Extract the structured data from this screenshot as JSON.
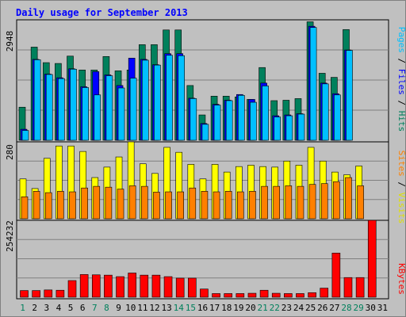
{
  "chart_data": [
    {
      "type": "bar",
      "title": "Daily usage for September 2013",
      "x": [
        1,
        2,
        3,
        4,
        5,
        6,
        7,
        8,
        9,
        10,
        11,
        12,
        13,
        14,
        15,
        16,
        17,
        18,
        19,
        20,
        21,
        22,
        23,
        24,
        25,
        26,
        27,
        28,
        29,
        30,
        31
      ],
      "x_labels": [
        "1",
        "2",
        "3",
        "4",
        "5",
        "6",
        "7",
        "8",
        "9",
        "10",
        "11",
        "12",
        "13",
        "14",
        "15",
        "16",
        "17",
        "18",
        "19",
        "20",
        "21",
        "22",
        "23",
        "24",
        "25",
        "26",
        "27",
        "28",
        "29",
        "30",
        "31"
      ],
      "ylim": [
        0,
        2948
      ],
      "ytick_label": "2948",
      "legend": [
        "Pages",
        "Files",
        "Hits"
      ],
      "legend_placement": "right",
      "grid": true,
      "series": [
        {
          "name": "Hits",
          "values": [
            810,
            2280,
            1900,
            1880,
            2060,
            1720,
            1720,
            2050,
            1700,
            1720,
            2340,
            2340,
            2700,
            2700,
            1340,
            620,
            1080,
            1080,
            1060,
            1000,
            1780,
            970,
            980,
            1020,
            2900,
            1640,
            1540,
            2710,
            0,
            0,
            0
          ]
        },
        {
          "name": "Files",
          "values": [
            270,
            1980,
            1620,
            1530,
            1750,
            1310,
            1680,
            1600,
            1340,
            2010,
            1980,
            1850,
            2120,
            2120,
            1030,
            410,
            880,
            980,
            1120,
            1000,
            1400,
            600,
            620,
            650,
            2790,
            1400,
            1140,
            2210,
            0,
            0,
            0
          ]
        },
        {
          "name": "Pages",
          "values": [
            240,
            1970,
            1610,
            1510,
            1740,
            1290,
            1110,
            1580,
            1280,
            1520,
            1960,
            1840,
            2080,
            2070,
            1020,
            390,
            860,
            970,
            1100,
            930,
            1330,
            570,
            600,
            640,
            2760,
            1380,
            1110,
            2200,
            0,
            0,
            0
          ]
        }
      ]
    },
    {
      "type": "bar",
      "x": [
        1,
        2,
        3,
        4,
        5,
        6,
        7,
        8,
        9,
        10,
        11,
        12,
        13,
        14,
        15,
        16,
        17,
        18,
        19,
        20,
        21,
        22,
        23,
        24,
        25,
        26,
        27,
        28,
        29,
        30,
        31
      ],
      "ylim": [
        0,
        280
      ],
      "ytick_label": "280",
      "legend": [
        "Sites",
        "Visits"
      ],
      "legend_placement": "right",
      "grid": true,
      "series": [
        {
          "name": "Visits",
          "values": [
            145,
            110,
            220,
            265,
            265,
            245,
            150,
            188,
            225,
            285,
            200,
            165,
            260,
            242,
            198,
            145,
            198,
            170,
            190,
            195,
            190,
            188,
            210,
            195,
            260,
            210,
            170,
            160,
            192,
            0,
            0
          ]
        },
        {
          "name": "Sites",
          "values": [
            80,
            100,
            95,
            100,
            98,
            112,
            118,
            115,
            108,
            120,
            118,
            97,
            98,
            98,
            112,
            100,
            98,
            100,
            98,
            100,
            118,
            118,
            120,
            118,
            125,
            128,
            135,
            150,
            120,
            0,
            0
          ]
        }
      ]
    },
    {
      "type": "bar",
      "x": [
        1,
        2,
        3,
        4,
        5,
        6,
        7,
        8,
        9,
        10,
        11,
        12,
        13,
        14,
        15,
        16,
        17,
        18,
        19,
        20,
        21,
        22,
        23,
        24,
        25,
        26,
        27,
        28,
        29,
        30,
        31
      ],
      "ylim": [
        0,
        254232
      ],
      "ytick_label": "254232",
      "legend": [
        "KBytes"
      ],
      "legend_placement": "right",
      "grid": true,
      "series": [
        {
          "name": "KBytes",
          "values": [
            22000,
            22000,
            24000,
            23000,
            55000,
            75000,
            74000,
            73000,
            68000,
            80000,
            73000,
            73000,
            68000,
            63000,
            63000,
            27000,
            12000,
            12000,
            12000,
            13000,
            23000,
            13000,
            12000,
            12000,
            15000,
            30000,
            146000,
            65000,
            65000,
            254232,
            0
          ]
        }
      ]
    }
  ],
  "colors": {
    "hits": "#00805c",
    "files": "#0000ff",
    "pages": "#00c0ff",
    "visits": "#ffff00",
    "sites": "#ff8000",
    "kbytes": "#ff0000",
    "title": "#0000ff",
    "weekend_label": "#00805c",
    "weekday_label": "#000000",
    "panel_bg": "#c0c0c0",
    "border": "#000000"
  },
  "weekend_days": [
    1,
    7,
    8,
    14,
    15,
    21,
    22,
    28,
    29
  ]
}
